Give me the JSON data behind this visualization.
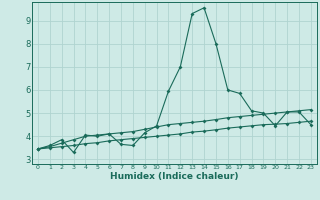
{
  "xlabel": "Humidex (Indice chaleur)",
  "xlim": [
    -0.5,
    23.5
  ],
  "ylim": [
    2.8,
    9.8
  ],
  "xticks": [
    0,
    1,
    2,
    3,
    4,
    5,
    6,
    7,
    8,
    9,
    10,
    11,
    12,
    13,
    14,
    15,
    16,
    17,
    18,
    19,
    20,
    21,
    22,
    23
  ],
  "yticks": [
    3,
    4,
    5,
    6,
    7,
    8,
    9
  ],
  "bg_color": "#ceeae6",
  "grid_color": "#b0d4d0",
  "line_color": "#1a6b5a",
  "line1_y": [
    3.45,
    3.6,
    3.85,
    3.3,
    4.05,
    4.0,
    4.1,
    3.65,
    3.6,
    4.15,
    4.45,
    5.95,
    7.0,
    9.3,
    9.55,
    8.0,
    6.0,
    5.85,
    5.1,
    5.0,
    4.45,
    5.05,
    5.05,
    4.5
  ],
  "line2_y": [
    3.45,
    3.55,
    3.7,
    3.85,
    4.0,
    4.05,
    4.1,
    4.15,
    4.2,
    4.3,
    4.4,
    4.5,
    4.55,
    4.6,
    4.65,
    4.72,
    4.8,
    4.85,
    4.9,
    4.95,
    5.0,
    5.05,
    5.1,
    5.15
  ],
  "line3_y": [
    3.45,
    3.5,
    3.55,
    3.6,
    3.68,
    3.72,
    3.8,
    3.85,
    3.9,
    3.95,
    4.0,
    4.05,
    4.1,
    4.18,
    4.22,
    4.28,
    4.35,
    4.4,
    4.45,
    4.5,
    4.52,
    4.55,
    4.6,
    4.65
  ]
}
